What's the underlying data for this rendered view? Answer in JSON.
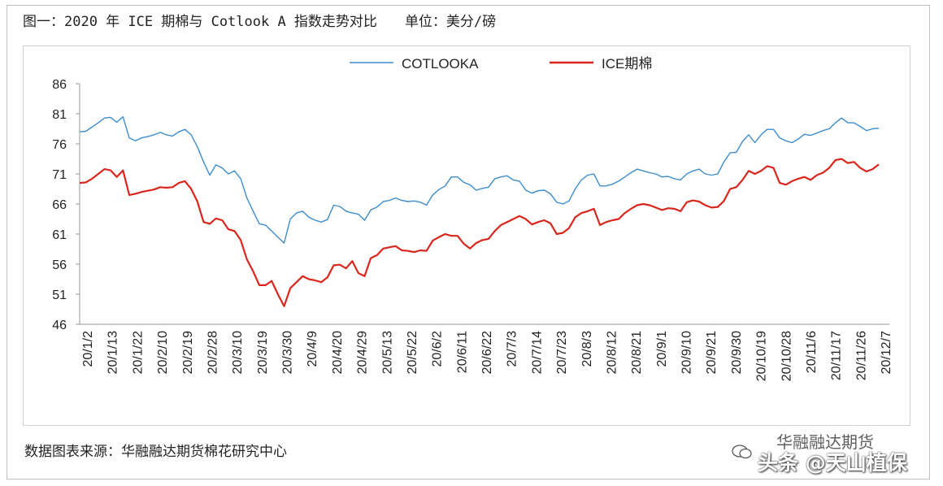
{
  "header": {
    "title": "图一：2020 年 ICE 期棉与 Cotlook A 指数走势对比",
    "unit": "单位：美分/磅"
  },
  "footer": {
    "source": "数据图表来源：华融融达期货棉花研究中心"
  },
  "watermark": {
    "account": "华融融达期货",
    "platform": "头条 @天山植保",
    "icon": "wechat-icon"
  },
  "chart_data": {
    "type": "line",
    "title": "",
    "xlabel": "",
    "ylabel": "",
    "ylim": [
      46,
      86
    ],
    "yticks": [
      46,
      51,
      56,
      61,
      66,
      71,
      76,
      81,
      86
    ],
    "grid": false,
    "legend_position": "top-center",
    "x_tick_labels": [
      "20/1/2",
      "20/1/13",
      "20/1/22",
      "20/2/10",
      "20/2/19",
      "20/2/28",
      "20/3/10",
      "20/3/19",
      "20/3/30",
      "20/4/9",
      "20/4/20",
      "20/4/29",
      "20/5/13",
      "20/5/22",
      "20/6/2",
      "20/6/11",
      "20/6/22",
      "20/7/3",
      "20/7/14",
      "20/7/23",
      "20/8/3",
      "20/8/12",
      "20/8/21",
      "20/9/1",
      "20/9/10",
      "20/9/21",
      "20/9/30",
      "20/10/19",
      "20/10/28",
      "20/11/6",
      "20/11/17",
      "20/11/26",
      "20/12/7"
    ],
    "colors": {
      "COTLOOKA": "#3d8ccc",
      "ICE期棉": "#d9261c",
      "axis": "#9a9a9a"
    },
    "series": [
      {
        "name": "COTLOOKA",
        "values": [
          78.0,
          78.1,
          78.8,
          79.5,
          80.3,
          80.4,
          79.6,
          80.5,
          77.0,
          76.5,
          77.0,
          77.2,
          77.5,
          77.9,
          77.5,
          77.3,
          78.0,
          78.4,
          77.5,
          75.5,
          73.0,
          70.8,
          72.5,
          72.0,
          71.0,
          71.5,
          70.2,
          67.0,
          64.8,
          62.7,
          62.5,
          61.5,
          60.5,
          59.5,
          63.5,
          64.5,
          64.8,
          63.8,
          63.3,
          63.0,
          63.4,
          65.8,
          65.6,
          64.8,
          64.5,
          64.3,
          63.3,
          65.0,
          65.5,
          66.4,
          66.6,
          67.0,
          66.6,
          66.4,
          66.5,
          66.3,
          65.8,
          67.5,
          68.4,
          69.0,
          70.5,
          70.5,
          69.6,
          69.2,
          68.3,
          68.6,
          68.8,
          70.2,
          70.5,
          70.7,
          70.0,
          69.8,
          68.3,
          67.8,
          68.2,
          68.3,
          67.7,
          66.3,
          66.0,
          66.5,
          68.5,
          70.0,
          70.8,
          71.0,
          69.0,
          69.0,
          69.3,
          69.8,
          70.5,
          71.2,
          71.8,
          71.5,
          71.2,
          71.0,
          70.5,
          70.6,
          70.2,
          70.0,
          71.0,
          71.5,
          71.8,
          71.0,
          70.8,
          71.0,
          73.0,
          74.5,
          74.6,
          76.4,
          77.5,
          76.2,
          77.5,
          78.4,
          78.4,
          77.0,
          76.5,
          76.2,
          76.8,
          77.6,
          77.4,
          77.8,
          78.2,
          78.5,
          79.5,
          80.3,
          79.5,
          79.5,
          78.9,
          78.2,
          78.5,
          78.6
        ]
      },
      {
        "name": "ICE期棉",
        "values": [
          69.5,
          69.6,
          70.2,
          71.0,
          71.8,
          71.6,
          70.5,
          71.6,
          67.5,
          67.7,
          68.0,
          68.2,
          68.4,
          68.8,
          68.7,
          68.8,
          69.5,
          69.8,
          68.5,
          66.4,
          63.0,
          62.7,
          63.6,
          63.3,
          61.8,
          61.5,
          60.0,
          56.8,
          54.8,
          52.5,
          52.5,
          53.2,
          51.0,
          49.0,
          52.0,
          53.0,
          54.0,
          53.5,
          53.3,
          53.0,
          53.8,
          55.8,
          55.9,
          55.3,
          56.5,
          54.5,
          54.0,
          57.0,
          57.5,
          58.6,
          58.8,
          59.0,
          58.3,
          58.2,
          58.0,
          58.3,
          58.2,
          59.9,
          60.5,
          61.0,
          60.7,
          60.7,
          59.4,
          58.6,
          59.5,
          60.0,
          60.2,
          61.5,
          62.5,
          63.0,
          63.5,
          64.0,
          63.5,
          62.6,
          63.0,
          63.3,
          62.8,
          61.0,
          61.2,
          62.0,
          63.8,
          64.5,
          64.8,
          65.2,
          62.5,
          63.0,
          63.3,
          63.5,
          64.5,
          65.2,
          65.8,
          66.0,
          65.8,
          65.4,
          65.0,
          65.3,
          65.2,
          64.8,
          66.3,
          66.6,
          66.4,
          65.8,
          65.4,
          65.5,
          66.5,
          68.5,
          68.8,
          70.0,
          71.5,
          71.0,
          71.5,
          72.3,
          72.0,
          69.5,
          69.2,
          69.8,
          70.2,
          70.5,
          70.0,
          70.8,
          71.2,
          72.0,
          73.3,
          73.5,
          72.8,
          73.0,
          72.0,
          71.4,
          71.8,
          72.6
        ]
      }
    ]
  }
}
